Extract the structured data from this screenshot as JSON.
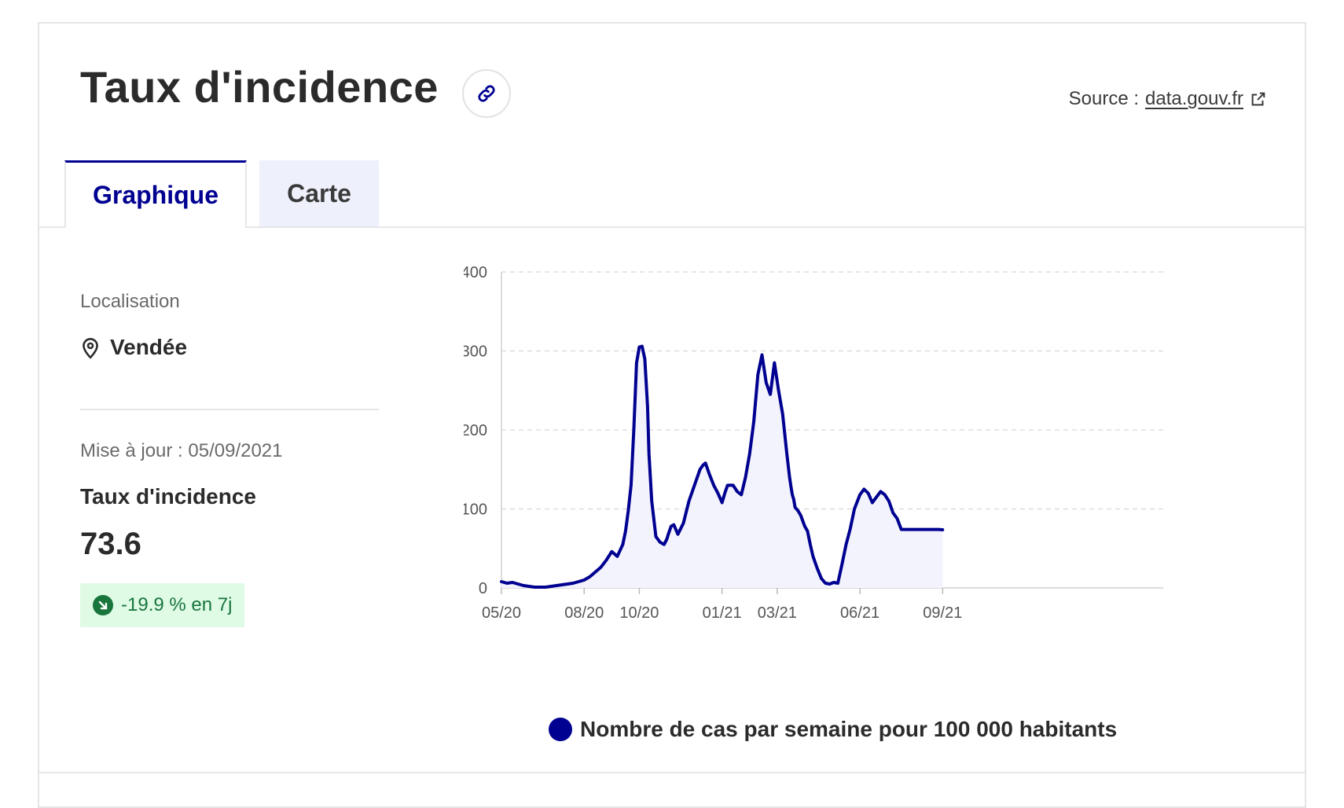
{
  "header": {
    "title": "Taux d'incidence",
    "source_label": "Source :",
    "source_link": "data.gouv.fr"
  },
  "tabs": [
    {
      "label": "Graphique",
      "active": true
    },
    {
      "label": "Carte",
      "active": false
    }
  ],
  "sidebar": {
    "location_label": "Localisation",
    "location_value": "Vendée",
    "update_text": "Mise à jour : 05/09/2021",
    "metric_label": "Taux d'incidence",
    "metric_value": "73.6",
    "trend_text": "-19.9 % en 7j"
  },
  "colors": {
    "accent": "#000091",
    "trend_bg": "#dffbe6",
    "trend_text": "#18753c",
    "area_fill": "#f3f3fd"
  },
  "icons": {
    "link": "link-icon",
    "external": "external-link-icon",
    "location": "map-pin-icon",
    "trend": "arrow-down-right-icon"
  },
  "chart_data": {
    "type": "area",
    "xlabel": "",
    "ylabel": "",
    "ylim": [
      0,
      400
    ],
    "yticks": [
      0,
      100,
      200,
      300,
      400
    ],
    "xlim": [
      0,
      24
    ],
    "xticks": [
      {
        "x": 0,
        "label": "05/20"
      },
      {
        "x": 3,
        "label": "08/20"
      },
      {
        "x": 5,
        "label": "10/20"
      },
      {
        "x": 8,
        "label": "01/21"
      },
      {
        "x": 10,
        "label": "03/21"
      },
      {
        "x": 13,
        "label": "06/21"
      },
      {
        "x": 16,
        "label": "09/21"
      }
    ],
    "grid": true,
    "legend_position": "bottom-center",
    "series": [
      {
        "name": "Nombre de cas par semaine pour 100 000 habitants",
        "color": "#000091",
        "x": [
          0,
          0.2,
          0.4,
          0.6,
          0.8,
          1.0,
          1.2,
          1.4,
          1.6,
          1.8,
          2.0,
          2.2,
          2.4,
          2.6,
          2.8,
          3.0,
          3.2,
          3.4,
          3.6,
          3.8,
          4.0,
          4.2,
          4.4,
          4.5,
          4.6,
          4.7,
          4.8,
          4.9,
          5.0,
          5.1,
          5.2,
          5.3,
          5.35,
          5.45,
          5.6,
          5.75,
          5.9,
          6.0,
          6.05,
          6.15,
          6.25,
          6.4,
          6.6,
          6.8,
          7.0,
          7.2,
          7.3,
          7.4,
          7.55,
          7.7,
          7.85,
          8.0,
          8.1,
          8.2,
          8.4,
          8.55,
          8.7,
          8.85,
          9.0,
          9.15,
          9.3,
          9.45,
          9.6,
          9.75,
          9.9,
          10.05,
          10.2,
          10.35,
          10.45,
          10.5,
          10.55,
          10.6,
          10.65,
          10.75,
          10.85,
          11.0,
          11.1,
          11.2,
          11.3,
          11.45,
          11.6,
          11.75,
          11.9,
          12.05,
          12.2,
          12.35,
          12.5,
          12.65,
          12.8,
          13.0,
          13.15,
          13.3,
          13.45,
          13.6,
          13.75,
          13.9,
          14.05,
          14.2,
          14.35,
          14.5,
          14.65,
          14.8,
          14.95,
          15.1,
          15.25,
          15.4,
          15.55,
          15.7,
          15.85,
          16.0
        ],
        "values": [
          8,
          6,
          7,
          5,
          3,
          2,
          1,
          1,
          1,
          2,
          3,
          4,
          5,
          6,
          8,
          10,
          14,
          20,
          26,
          35,
          46,
          40,
          55,
          72,
          98,
          130,
          200,
          285,
          305,
          306,
          290,
          230,
          170,
          110,
          65,
          58,
          55,
          62,
          68,
          78,
          80,
          68,
          82,
          110,
          130,
          150,
          155,
          158,
          143,
          130,
          120,
          108,
          120,
          130,
          130,
          122,
          118,
          140,
          170,
          210,
          270,
          295,
          260,
          245,
          285,
          250,
          220,
          170,
          140,
          128,
          118,
          112,
          102,
          98,
          92,
          78,
          72,
          55,
          40,
          25,
          12,
          6,
          5,
          7,
          6,
          30,
          55,
          75,
          100,
          118,
          125,
          120,
          108,
          115,
          122,
          118,
          110,
          95,
          88,
          74,
          74,
          74,
          74,
          74,
          74,
          74,
          74,
          74,
          74,
          73.6
        ]
      }
    ]
  }
}
